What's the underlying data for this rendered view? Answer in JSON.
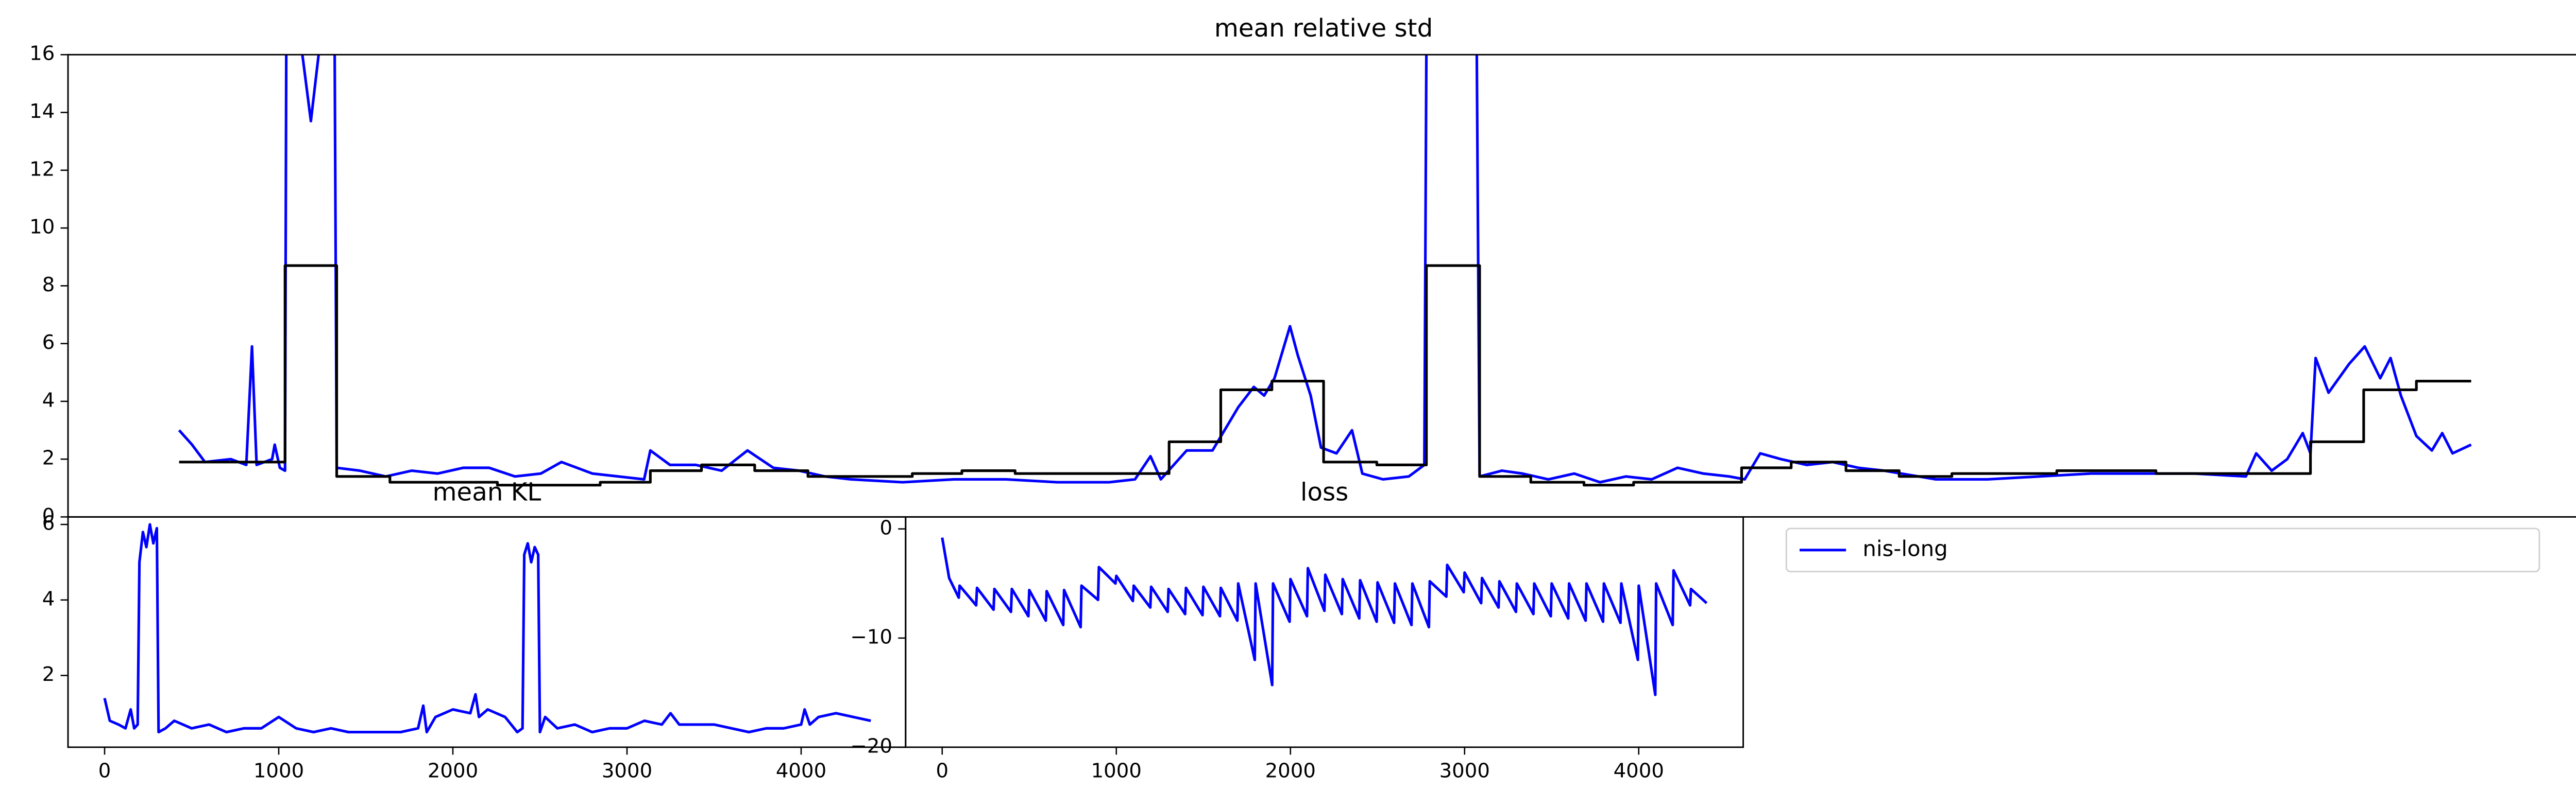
{
  "chart_data": [
    {
      "type": "line",
      "title": "mean relative std",
      "xlim": [
        -215,
        4645
      ],
      "ylim": [
        0,
        16
      ],
      "yticks": [
        0,
        2,
        4,
        6,
        8,
        10,
        12,
        14,
        16
      ],
      "series": [
        {
          "color": "#0000ff",
          "x": [
            0,
            25,
            50,
            100,
            130,
            141,
            150,
            180,
            185,
            195,
            205,
            208,
            240,
            255,
            270,
            300,
            305,
            350,
            400,
            450,
            500,
            550,
            600,
            650,
            700,
            740,
            800,
            850,
            900,
            912,
            950,
            1000,
            1050,
            1100,
            1150,
            1200,
            1250,
            1300,
            1400,
            1500,
            1600,
            1700,
            1800,
            1850,
            1880,
            1900,
            1950,
            2000,
            2050,
            2080,
            2100,
            2120,
            2150,
            2165,
            2190,
            2210,
            2240,
            2270,
            2290,
            2330,
            2380,
            2410,
            2415,
            2510,
            2517,
            2560,
            2600,
            2650,
            2700,
            2750,
            2800,
            2850,
            2900,
            2950,
            3000,
            3030,
            3060,
            3100,
            3150,
            3200,
            3250,
            3300,
            3400,
            3500,
            3600,
            3700,
            3800,
            3900,
            4000,
            4020,
            4050,
            4080,
            4110,
            4125,
            4135,
            4160,
            4200,
            4230,
            4260,
            4280,
            4300,
            4330,
            4360,
            4380,
            4400,
            4436
          ],
          "values": [
            3.0,
            2.5,
            1.9,
            2.0,
            1.8,
            5.9,
            1.8,
            2.0,
            2.5,
            1.7,
            1.6,
            20,
            15.8,
            13.7,
            16,
            20,
            1.7,
            1.6,
            1.4,
            1.6,
            1.5,
            1.7,
            1.7,
            1.4,
            1.5,
            1.9,
            1.5,
            1.4,
            1.3,
            2.3,
            1.8,
            1.8,
            1.6,
            2.3,
            1.7,
            1.6,
            1.4,
            1.3,
            1.2,
            1.3,
            1.3,
            1.2,
            1.2,
            1.3,
            2.1,
            1.3,
            2.3,
            2.3,
            3.8,
            4.5,
            4.2,
            4.8,
            6.6,
            5.6,
            4.2,
            2.4,
            2.2,
            3.0,
            1.5,
            1.3,
            1.4,
            1.8,
            20,
            20,
            1.4,
            1.6,
            1.5,
            1.3,
            1.5,
            1.2,
            1.4,
            1.3,
            1.7,
            1.5,
            1.4,
            1.3,
            2.2,
            2.0,
            1.8,
            1.9,
            1.7,
            1.6,
            1.3,
            1.3,
            1.4,
            1.5,
            1.5,
            1.5,
            1.4,
            2.2,
            1.6,
            2.0,
            2.9,
            2.2,
            5.5,
            4.3,
            5.3,
            5.9,
            4.8,
            5.5,
            4.2,
            2.8,
            2.3,
            2.9,
            2.2,
            2.5
          ]
        },
        {
          "color": "#000000",
          "drawstyle": "steps-post",
          "x": [
            0,
            205,
            305,
            408,
            616,
            815,
            912,
            1011,
            1114,
            1217,
            1419,
            1515,
            1618,
            1916,
            2016,
            2115,
            2215,
            2318,
            2414,
            2517,
            2616,
            2719,
            2815,
            3024,
            3120,
            3226,
            3329,
            3431,
            3634,
            3826,
            4125,
            4228,
            4330,
            4436
          ],
          "values": [
            1.9,
            8.7,
            1.4,
            1.2,
            1.1,
            1.2,
            1.6,
            1.8,
            1.6,
            1.4,
            1.5,
            1.6,
            1.5,
            2.6,
            4.4,
            4.7,
            1.9,
            1.8,
            8.7,
            1.4,
            1.2,
            1.1,
            1.2,
            1.7,
            1.9,
            1.6,
            1.4,
            1.5,
            1.6,
            1.5,
            2.6,
            4.4,
            4.7,
            4.7
          ]
        }
      ]
    },
    {
      "type": "line",
      "title": "mean KL",
      "xlim": [
        -210,
        4600
      ],
      "xticks": [
        0,
        1000,
        2000,
        3000,
        4000
      ],
      "ylim": [
        0.1,
        6.2
      ],
      "yticks": [
        2,
        4,
        6
      ],
      "series": [
        {
          "color": "#0000ff",
          "x": [
            0,
            30,
            80,
            120,
            150,
            170,
            190,
            200,
            220,
            240,
            260,
            280,
            300,
            310,
            350,
            400,
            500,
            600,
            700,
            800,
            900,
            1000,
            1100,
            1200,
            1300,
            1400,
            1500,
            1600,
            1700,
            1800,
            1830,
            1850,
            1900,
            2000,
            2100,
            2130,
            2150,
            2200,
            2300,
            2370,
            2400,
            2410,
            2430,
            2450,
            2470,
            2490,
            2500,
            2530,
            2600,
            2700,
            2800,
            2900,
            3000,
            3100,
            3200,
            3250,
            3300,
            3400,
            3500,
            3600,
            3700,
            3800,
            3900,
            4000,
            4020,
            4050,
            4100,
            4200,
            4300,
            4400
          ],
          "values": [
            1.4,
            0.8,
            0.7,
            0.6,
            1.1,
            0.6,
            0.7,
            5.0,
            5.8,
            5.4,
            6.0,
            5.5,
            5.9,
            0.5,
            0.6,
            0.8,
            0.6,
            0.7,
            0.5,
            0.6,
            0.6,
            0.9,
            0.6,
            0.5,
            0.6,
            0.5,
            0.5,
            0.5,
            0.5,
            0.6,
            1.2,
            0.5,
            0.9,
            1.1,
            1.0,
            1.5,
            0.9,
            1.1,
            0.9,
            0.5,
            0.6,
            5.2,
            5.5,
            5.0,
            5.4,
            5.2,
            0.5,
            0.9,
            0.6,
            0.7,
            0.5,
            0.6,
            0.6,
            0.8,
            0.7,
            1.0,
            0.7,
            0.7,
            0.7,
            0.6,
            0.5,
            0.6,
            0.6,
            0.7,
            1.1,
            0.7,
            0.9,
            1.0,
            0.9,
            0.8
          ]
        }
      ]
    },
    {
      "type": "line",
      "title": "loss",
      "xlim": [
        -210,
        4600
      ],
      "xticks": [
        0,
        1000,
        2000,
        3000,
        4000
      ],
      "ylim": [
        -20,
        1.1
      ],
      "yticks": [
        0,
        {
          "value": -10,
          "label": "−10"
        },
        {
          "value": -20,
          "label": "−20"
        }
      ],
      "series": [
        {
          "color": "#0000ff",
          "x": [
            0,
            40,
            95,
            100,
            195,
            200,
            295,
            300,
            395,
            400,
            495,
            500,
            595,
            600,
            695,
            700,
            795,
            800,
            895,
            900,
            995,
            1000,
            1095,
            1100,
            1195,
            1200,
            1295,
            1300,
            1395,
            1400,
            1495,
            1500,
            1595,
            1600,
            1695,
            1700,
            1795,
            1800,
            1895,
            1900,
            1995,
            2000,
            2095,
            2100,
            2195,
            2200,
            2295,
            2300,
            2395,
            2400,
            2495,
            2500,
            2595,
            2600,
            2695,
            2700,
            2795,
            2800,
            2895,
            2900,
            2995,
            3000,
            3095,
            3100,
            3195,
            3200,
            3295,
            3300,
            3395,
            3400,
            3495,
            3500,
            3595,
            3600,
            3695,
            3700,
            3795,
            3800,
            3895,
            3900,
            3995,
            4000,
            4095,
            4100,
            4195,
            4200,
            4295,
            4300,
            4390
          ],
          "values": [
            -0.8,
            -4.5,
            -6.3,
            -5.2,
            -7.0,
            -5.4,
            -7.4,
            -5.5,
            -7.6,
            -5.5,
            -8.0,
            -5.6,
            -8.4,
            -5.7,
            -8.8,
            -5.6,
            -9.0,
            -5.2,
            -6.5,
            -3.5,
            -5.0,
            -4.3,
            -6.6,
            -5.2,
            -7.2,
            -5.3,
            -7.6,
            -5.5,
            -7.8,
            -5.4,
            -7.9,
            -5.3,
            -8.0,
            -5.4,
            -8.4,
            -5.0,
            -12.0,
            -5.0,
            -14.3,
            -5.0,
            -8.5,
            -4.6,
            -8.0,
            -3.6,
            -7.5,
            -4.2,
            -7.8,
            -4.6,
            -8.2,
            -4.7,
            -8.5,
            -4.9,
            -8.6,
            -5.0,
            -8.8,
            -5.0,
            -9.0,
            -4.8,
            -6.2,
            -3.3,
            -5.8,
            -4.0,
            -6.8,
            -4.5,
            -7.2,
            -4.8,
            -7.6,
            -5.0,
            -7.8,
            -5.0,
            -8.0,
            -5.0,
            -8.2,
            -5.0,
            -8.4,
            -5.0,
            -8.5,
            -5.0,
            -8.6,
            -5.0,
            -12.0,
            -5.2,
            -15.2,
            -5.0,
            -8.8,
            -3.8,
            -7.0,
            -5.5,
            -6.8
          ]
        }
      ]
    },
    {
      "type": "legend",
      "series": [
        {
          "name": "nis-long",
          "color": "#0000ff"
        }
      ]
    }
  ]
}
